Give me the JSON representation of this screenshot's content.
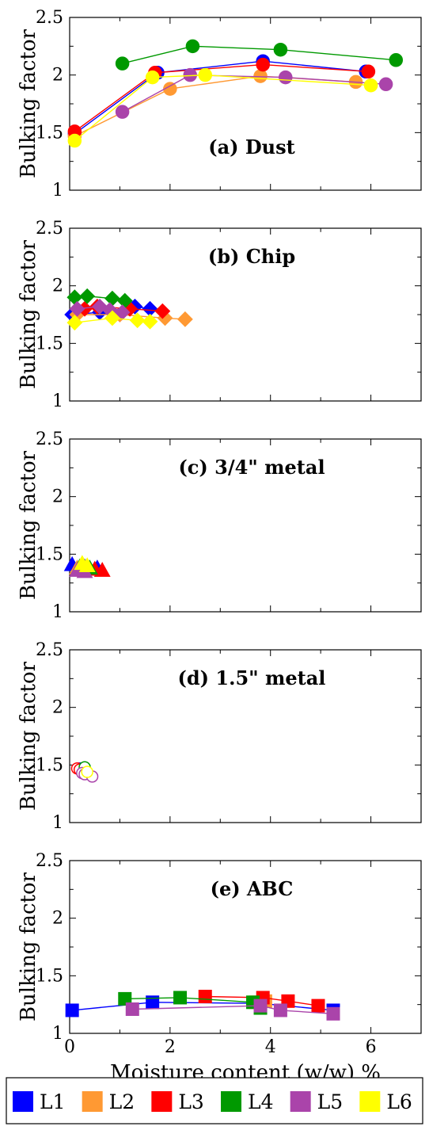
{
  "chart_data": [
    {
      "type": "scatter",
      "panel": "a",
      "title": "(a) Dust",
      "xlabel": "",
      "ylabel": "Bulking factor",
      "xlim": [
        0,
        7
      ],
      "ylim": [
        1,
        2.5
      ],
      "marker": "circle",
      "filled": true,
      "connected": true,
      "series": [
        {
          "name": "L1",
          "points": [
            [
              0.1,
              1.49
            ],
            [
              1.75,
              2.02
            ],
            [
              3.85,
              2.12
            ],
            [
              5.9,
              2.03
            ]
          ]
        },
        {
          "name": "L2",
          "points": [
            [
              0.1,
              1.47
            ],
            [
              2.0,
              1.88
            ],
            [
              3.8,
              1.99
            ],
            [
              5.7,
              1.94
            ]
          ]
        },
        {
          "name": "L3",
          "points": [
            [
              0.1,
              1.51
            ],
            [
              1.7,
              2.02
            ],
            [
              3.85,
              2.09
            ],
            [
              5.95,
              2.03
            ]
          ]
        },
        {
          "name": "L4",
          "points": [
            [
              1.05,
              2.1
            ],
            [
              2.45,
              2.25
            ],
            [
              4.2,
              2.22
            ],
            [
              6.5,
              2.13
            ]
          ]
        },
        {
          "name": "L5",
          "points": [
            [
              1.05,
              1.68
            ],
            [
              2.4,
              2.0
            ],
            [
              4.3,
              1.98
            ],
            [
              6.3,
              1.92
            ]
          ]
        },
        {
          "name": "L6",
          "points": [
            [
              0.1,
              1.43
            ],
            [
              1.65,
              1.98
            ],
            [
              2.7,
              2.0
            ],
            [
              6.0,
              1.91
            ]
          ]
        }
      ]
    },
    {
      "type": "scatter",
      "panel": "b",
      "title": "(b) Chip",
      "xlabel": "",
      "ylabel": "Bulking factor",
      "xlim": [
        0,
        7
      ],
      "ylim": [
        1,
        2.5
      ],
      "marker": "diamond",
      "filled": true,
      "connected": true,
      "series": [
        {
          "name": "L1",
          "points": [
            [
              0.05,
              1.75
            ],
            [
              0.6,
              1.77
            ],
            [
              1.3,
              1.82
            ],
            [
              1.6,
              1.8
            ]
          ]
        },
        {
          "name": "L2",
          "points": [
            [
              0.15,
              1.75
            ],
            [
              1.0,
              1.75
            ],
            [
              1.9,
              1.72
            ],
            [
              2.3,
              1.71
            ]
          ]
        },
        {
          "name": "L3",
          "points": [
            [
              0.3,
              1.8
            ],
            [
              0.55,
              1.82
            ],
            [
              1.2,
              1.8
            ],
            [
              1.85,
              1.78
            ]
          ]
        },
        {
          "name": "L4",
          "points": [
            [
              0.1,
              1.9
            ],
            [
              0.35,
              1.91
            ],
            [
              0.85,
              1.89
            ],
            [
              1.1,
              1.87
            ]
          ]
        },
        {
          "name": "L5",
          "points": [
            [
              0.15,
              1.8
            ],
            [
              0.6,
              1.82
            ],
            [
              0.8,
              1.79
            ],
            [
              1.05,
              1.77
            ]
          ]
        },
        {
          "name": "L6",
          "points": [
            [
              0.1,
              1.68
            ],
            [
              0.85,
              1.72
            ],
            [
              1.35,
              1.7
            ],
            [
              1.6,
              1.69
            ]
          ]
        }
      ]
    },
    {
      "type": "scatter",
      "panel": "c",
      "title": "(c) 3/4\" metal",
      "xlabel": "",
      "ylabel": "Bulking factor",
      "xlim": [
        0,
        7
      ],
      "ylim": [
        1,
        2.5
      ],
      "marker": "triangle",
      "filled": true,
      "connected": true,
      "series": [
        {
          "name": "L1",
          "points": [
            [
              0.05,
              1.41
            ],
            [
              0.3,
              1.39
            ],
            [
              0.55,
              1.38
            ]
          ]
        },
        {
          "name": "L2",
          "points": [
            [
              0.15,
              1.38
            ],
            [
              0.4,
              1.37
            ]
          ]
        },
        {
          "name": "L3",
          "points": [
            [
              0.3,
              1.38
            ],
            [
              0.5,
              1.37
            ],
            [
              0.65,
              1.36
            ]
          ]
        },
        {
          "name": "L4",
          "points": [
            [
              0.2,
              1.39
            ],
            [
              0.4,
              1.38
            ]
          ]
        },
        {
          "name": "L5",
          "points": [
            [
              0.15,
              1.36
            ],
            [
              0.3,
              1.35
            ]
          ]
        },
        {
          "name": "L6",
          "points": [
            [
              0.25,
              1.42
            ],
            [
              0.35,
              1.4
            ]
          ]
        }
      ]
    },
    {
      "type": "scatter",
      "panel": "d",
      "title": "(d) 1.5\" metal",
      "xlabel": "",
      "ylabel": "Bulking factor",
      "xlim": [
        0,
        7
      ],
      "ylim": [
        1,
        2.5
      ],
      "marker": "circle",
      "filled": false,
      "connected": false,
      "series": [
        {
          "name": "L1",
          "points": [
            [
              0.2,
              1.47
            ]
          ]
        },
        {
          "name": "L2",
          "points": [
            [
              0.25,
              1.46
            ]
          ]
        },
        {
          "name": "L3",
          "points": [
            [
              0.15,
              1.47
            ],
            [
              0.2,
              1.46
            ]
          ]
        },
        {
          "name": "L4",
          "points": [
            [
              0.3,
              1.48
            ]
          ]
        },
        {
          "name": "L5",
          "points": [
            [
              0.25,
              1.43
            ],
            [
              0.3,
              1.42
            ],
            [
              0.45,
              1.4
            ]
          ]
        },
        {
          "name": "L6",
          "points": [
            [
              0.35,
              1.44
            ]
          ]
        }
      ]
    },
    {
      "type": "scatter",
      "panel": "e",
      "title": "(e) ABC",
      "xlabel": "Moisture content (w/w) %",
      "ylabel": "Bulking factor",
      "xlim": [
        0,
        7
      ],
      "ylim": [
        1,
        2.5
      ],
      "xticks": [
        0,
        2,
        4,
        6
      ],
      "marker": "square",
      "filled": true,
      "connected": true,
      "series": [
        {
          "name": "L1",
          "points": [
            [
              0.05,
              1.2
            ],
            [
              1.65,
              1.27
            ],
            [
              3.8,
              1.26
            ],
            [
              5.25,
              1.2
            ]
          ]
        },
        {
          "name": "L2",
          "points": [
            [
              3.7,
              1.27
            ],
            [
              3.9,
              1.28
            ]
          ]
        },
        {
          "name": "L3",
          "points": [
            [
              2.7,
              1.32
            ],
            [
              3.85,
              1.31
            ],
            [
              4.35,
              1.28
            ],
            [
              4.95,
              1.24
            ]
          ]
        },
        {
          "name": "L4",
          "points": [
            [
              1.1,
              1.3
            ],
            [
              2.2,
              1.31
            ],
            [
              3.65,
              1.27
            ],
            [
              3.8,
              1.22
            ]
          ]
        },
        {
          "name": "L5",
          "points": [
            [
              1.25,
              1.21
            ],
            [
              3.8,
              1.24
            ],
            [
              4.2,
              1.2
            ],
            [
              5.25,
              1.17
            ]
          ]
        }
      ]
    }
  ],
  "legend": {
    "position": "bottom",
    "entries": [
      {
        "name": "L1",
        "color": "#0000ff"
      },
      {
        "name": "L2",
        "color": "#ff9933"
      },
      {
        "name": "L3",
        "color": "#ff0000"
      },
      {
        "name": "L4",
        "color": "#009900"
      },
      {
        "name": "L5",
        "color": "#aa44aa"
      },
      {
        "name": "L6",
        "color": "#ffff00"
      }
    ]
  },
  "yticks": [
    "1",
    "1.5",
    "2",
    "2.5"
  ],
  "xtick_labels": [
    "0",
    "2",
    "4",
    "6"
  ]
}
